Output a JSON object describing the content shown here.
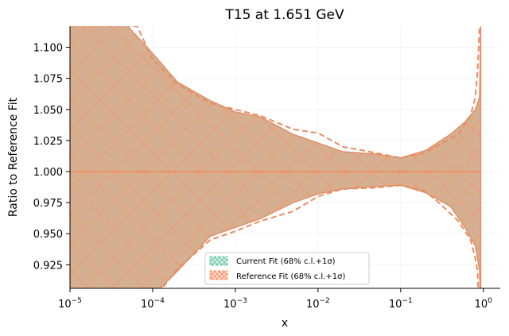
{
  "chart_data": {
    "type": "area",
    "title": "T15 at 1.651 GeV",
    "xlabel": "x",
    "ylabel": "Ratio to Reference Fit",
    "xscale": "log",
    "xlim": [
      1e-05,
      1.6
    ],
    "ylim": [
      0.906,
      1.117
    ],
    "grid": false,
    "legend_position": "lower-center",
    "xticks": [
      {
        "value": 1e-05,
        "base": "10",
        "exp": "−5"
      },
      {
        "value": 0.0001,
        "base": "10",
        "exp": "−4"
      },
      {
        "value": 0.001,
        "base": "10",
        "exp": "−3"
      },
      {
        "value": 0.01,
        "base": "10",
        "exp": "−2"
      },
      {
        "value": 0.1,
        "base": "10",
        "exp": "−1"
      },
      {
        "value": 1,
        "base": "10",
        "exp": "0"
      }
    ],
    "yticks": [
      0.925,
      0.95,
      0.975,
      1.0,
      1.025,
      1.05,
      1.075,
      1.1
    ],
    "ytick_labels": [
      "0.925",
      "0.950",
      "0.975",
      "1.000",
      "1.025",
      "1.050",
      "1.075",
      "1.100"
    ],
    "series": [
      {
        "name": "Current Fit (68% c.l.+1σ)",
        "color": "#66c2a5",
        "style": "band",
        "central": [
          [
            1e-05,
            1.0
          ],
          [
            0.93,
            1.0
          ]
        ],
        "upper": [
          [
            1e-05,
            1.12
          ],
          [
            3e-05,
            1.12
          ],
          [
            5e-05,
            1.117
          ],
          [
            0.0001,
            1.095
          ],
          [
            0.0002,
            1.072
          ],
          [
            0.0005,
            1.057
          ],
          [
            0.001,
            1.048
          ],
          [
            0.002,
            1.044
          ],
          [
            0.005,
            1.03
          ],
          [
            0.01,
            1.023
          ],
          [
            0.02,
            1.016
          ],
          [
            0.05,
            1.014
          ],
          [
            0.1,
            1.011
          ],
          [
            0.2,
            1.017
          ],
          [
            0.4,
            1.03
          ],
          [
            0.6,
            1.04
          ],
          [
            0.8,
            1.05
          ],
          [
            0.9,
            1.06
          ],
          [
            0.93,
            1.12
          ]
        ],
        "lower": [
          [
            1e-05,
            0.88
          ],
          [
            3e-05,
            0.88
          ],
          [
            5e-05,
            0.885
          ],
          [
            0.0001,
            0.9
          ],
          [
            0.0002,
            0.92
          ],
          [
            0.0005,
            0.948
          ],
          [
            0.001,
            0.955
          ],
          [
            0.002,
            0.962
          ],
          [
            0.005,
            0.975
          ],
          [
            0.01,
            0.982
          ],
          [
            0.02,
            0.986
          ],
          [
            0.05,
            0.988
          ],
          [
            0.1,
            0.989
          ],
          [
            0.2,
            0.983
          ],
          [
            0.4,
            0.972
          ],
          [
            0.6,
            0.955
          ],
          [
            0.8,
            0.94
          ],
          [
            0.9,
            0.92
          ],
          [
            0.93,
            0.88
          ]
        ]
      },
      {
        "name": "Reference Fit (68% c.l.+1σ)",
        "color": "#fc8d62",
        "style": "band",
        "central": [
          [
            1e-05,
            1.0
          ],
          [
            0.93,
            1.0
          ]
        ],
        "upper": [
          [
            6.5e-06,
            1.117
          ],
          [
            1e-05,
            1.117
          ],
          [
            5e-05,
            1.117
          ],
          [
            6.5e-05,
            1.117
          ],
          [
            0.0001,
            1.09
          ],
          [
            0.0002,
            1.07
          ],
          [
            0.0005,
            1.055
          ],
          [
            0.001,
            1.05
          ],
          [
            0.002,
            1.045
          ],
          [
            0.005,
            1.034
          ],
          [
            0.01,
            1.031
          ],
          [
            0.02,
            1.02
          ],
          [
            0.05,
            1.015
          ],
          [
            0.1,
            1.011
          ],
          [
            0.2,
            1.015
          ],
          [
            0.3,
            1.022
          ],
          [
            0.5,
            1.03
          ],
          [
            0.7,
            1.045
          ],
          [
            0.8,
            1.06
          ],
          [
            0.85,
            1.08
          ],
          [
            0.9,
            1.117
          ]
        ],
        "lower": [
          [
            6.5e-06,
            0.88
          ],
          [
            1e-05,
            0.88
          ],
          [
            5e-05,
            0.88
          ],
          [
            0.00012,
            0.903
          ],
          [
            0.0002,
            0.922
          ],
          [
            0.0005,
            0.945
          ],
          [
            0.001,
            0.952
          ],
          [
            0.002,
            0.96
          ],
          [
            0.005,
            0.968
          ],
          [
            0.01,
            0.98
          ],
          [
            0.02,
            0.986
          ],
          [
            0.05,
            0.987
          ],
          [
            0.1,
            0.989
          ],
          [
            0.2,
            0.984
          ],
          [
            0.3,
            0.974
          ],
          [
            0.5,
            0.96
          ],
          [
            0.7,
            0.945
          ],
          [
            0.8,
            0.93
          ],
          [
            0.85,
            0.92
          ],
          [
            0.9,
            0.88
          ]
        ]
      }
    ]
  },
  "legend": {
    "current_label": "Current Fit (68% c.l.+1σ)",
    "reference_label": "Reference Fit (68% c.l.+1σ)"
  },
  "colors": {
    "current": "#66c2a5",
    "reference": "#fc8d62",
    "overlap_fill": "#d6ae90",
    "band_edge": "#e38b63",
    "dashed": "#e58f62",
    "axis": "#000000"
  }
}
